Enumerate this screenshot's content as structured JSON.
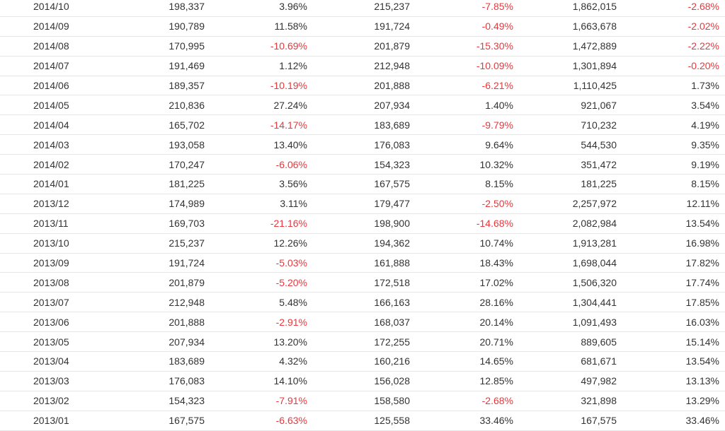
{
  "table": {
    "rows": [
      [
        "2014/10",
        "198,337",
        "3.96%",
        "215,237",
        "-7.85%",
        "1,862,015",
        "-2.68%"
      ],
      [
        "2014/09",
        "190,789",
        "11.58%",
        "191,724",
        "-0.49%",
        "1,663,678",
        "-2.02%"
      ],
      [
        "2014/08",
        "170,995",
        "-10.69%",
        "201,879",
        "-15.30%",
        "1,472,889",
        "-2.22%"
      ],
      [
        "2014/07",
        "191,469",
        "1.12%",
        "212,948",
        "-10.09%",
        "1,301,894",
        "-0.20%"
      ],
      [
        "2014/06",
        "189,357",
        "-10.19%",
        "201,888",
        "-6.21%",
        "1,110,425",
        "1.73%"
      ],
      [
        "2014/05",
        "210,836",
        "27.24%",
        "207,934",
        "1.40%",
        "921,067",
        "3.54%"
      ],
      [
        "2014/04",
        "165,702",
        "-14.17%",
        "183,689",
        "-9.79%",
        "710,232",
        "4.19%"
      ],
      [
        "2014/03",
        "193,058",
        "13.40%",
        "176,083",
        "9.64%",
        "544,530",
        "9.35%"
      ],
      [
        "2014/02",
        "170,247",
        "-6.06%",
        "154,323",
        "10.32%",
        "351,472",
        "9.19%"
      ],
      [
        "2014/01",
        "181,225",
        "3.56%",
        "167,575",
        "8.15%",
        "181,225",
        "8.15%"
      ],
      [
        "2013/12",
        "174,989",
        "3.11%",
        "179,477",
        "-2.50%",
        "2,257,972",
        "12.11%"
      ],
      [
        "2013/11",
        "169,703",
        "-21.16%",
        "198,900",
        "-14.68%",
        "2,082,984",
        "13.54%"
      ],
      [
        "2013/10",
        "215,237",
        "12.26%",
        "194,362",
        "10.74%",
        "1,913,281",
        "16.98%"
      ],
      [
        "2013/09",
        "191,724",
        "-5.03%",
        "161,888",
        "18.43%",
        "1,698,044",
        "17.82%"
      ],
      [
        "2013/08",
        "201,879",
        "-5.20%",
        "172,518",
        "17.02%",
        "1,506,320",
        "17.74%"
      ],
      [
        "2013/07",
        "212,948",
        "5.48%",
        "166,163",
        "28.16%",
        "1,304,441",
        "17.85%"
      ],
      [
        "2013/06",
        "201,888",
        "-2.91%",
        "168,037",
        "20.14%",
        "1,091,493",
        "16.03%"
      ],
      [
        "2013/05",
        "207,934",
        "13.20%",
        "172,255",
        "20.71%",
        "889,605",
        "15.14%"
      ],
      [
        "2013/04",
        "183,689",
        "4.32%",
        "160,216",
        "14.65%",
        "681,671",
        "13.54%"
      ],
      [
        "2013/03",
        "176,083",
        "14.10%",
        "156,028",
        "12.85%",
        "497,982",
        "13.13%"
      ],
      [
        "2013/02",
        "154,323",
        "-7.91%",
        "158,580",
        "-2.68%",
        "321,898",
        "13.29%"
      ],
      [
        "2013/01",
        "167,575",
        "-6.63%",
        "125,558",
        "33.46%",
        "167,575",
        "33.46%"
      ]
    ]
  },
  "colors": {
    "text": "#333333",
    "negative": "#e8383d",
    "divider": "#e6e6e6"
  }
}
